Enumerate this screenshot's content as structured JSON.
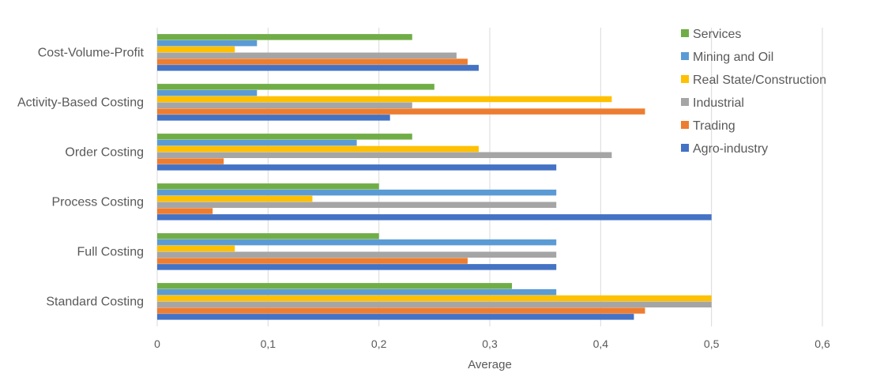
{
  "chart_data": {
    "type": "bar",
    "orientation": "horizontal",
    "categories": [
      "Standard Costing",
      "Full Costing",
      "Process Costing",
      "Order Costing",
      "Activity-Based Costing",
      "Cost-Volume-Profit"
    ],
    "series": [
      {
        "name": "Agro-industry",
        "color": "#4472C4",
        "values": [
          0.43,
          0.36,
          0.5,
          0.36,
          0.21,
          0.29
        ]
      },
      {
        "name": "Trading",
        "color": "#ED7D31",
        "values": [
          0.44,
          0.28,
          0.05,
          0.06,
          0.44,
          0.28
        ]
      },
      {
        "name": "Industrial",
        "color": "#A5A5A5",
        "values": [
          0.5,
          0.36,
          0.36,
          0.41,
          0.23,
          0.27
        ]
      },
      {
        "name": "Real State/Construction",
        "color": "#FFC000",
        "values": [
          0.5,
          0.07,
          0.14,
          0.29,
          0.41,
          0.07
        ]
      },
      {
        "name": "Mining and Oil",
        "color": "#5B9BD5",
        "values": [
          0.36,
          0.36,
          0.36,
          0.18,
          0.09,
          0.09
        ]
      },
      {
        "name": "Services",
        "color": "#70AD47",
        "values": [
          0.32,
          0.2,
          0.2,
          0.23,
          0.25,
          0.23
        ]
      }
    ],
    "xlabel": "Average",
    "ylabel": "",
    "xlim": [
      0,
      0.6
    ],
    "xticks": [
      0,
      0.1,
      0.2,
      0.3,
      0.4,
      0.5,
      0.6
    ],
    "xtick_labels": [
      "0",
      "0,1",
      "0,2",
      "0,3",
      "0,4",
      "0,5",
      "0,6"
    ],
    "grid": true,
    "legend_position": "top-right",
    "legend_order": [
      "Services",
      "Mining and Oil",
      "Real State/Construction",
      "Industrial",
      "Trading",
      "Agro-industry"
    ]
  }
}
